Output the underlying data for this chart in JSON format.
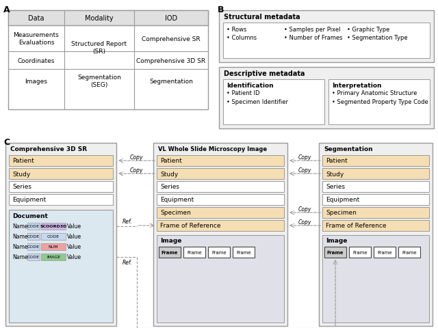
{
  "title_A": "A",
  "title_B": "B",
  "title_C": "C",
  "table_headers": [
    "Data",
    "Modality",
    "IOD"
  ],
  "struct_meta_title": "Structural metadata",
  "struct_meta_items_col1": [
    "Rows",
    "Columns"
  ],
  "struct_meta_items_col2": [
    "Samples per Pixel",
    "Number of Frames"
  ],
  "struct_meta_items_col3": [
    "Graphic Type",
    "Segmentation Type"
  ],
  "desc_meta_title": "Descriptive metadata",
  "ident_title": "Identification",
  "ident_items": [
    "Patient ID",
    "Specimen Identifier"
  ],
  "interp_title": "Interpretation",
  "interp_items": [
    "Primary Anatomic Structure",
    "Segmented Property Type Code"
  ],
  "box1_title": "Comprehensive 3D SR",
  "box2_title": "VL Whole Slide Microscopy Image",
  "box3_title": "Segmentation",
  "doc_title": "Document",
  "doc_rows": [
    {
      "left": "CODE",
      "right": "SCOORD3D",
      "left_color": "#c8d8f0",
      "right_color": "#d0b8e8"
    },
    {
      "left": "CODE",
      "right": "CODE",
      "left_color": "#c8d8f0",
      "right_color": "#c8d8f0"
    },
    {
      "left": "CODE",
      "right": "NUM",
      "left_color": "#c8d8f0",
      "right_color": "#f0a0a0"
    },
    {
      "left": "CODE",
      "right": "IMAGE",
      "left_color": "#c8d8f0",
      "right_color": "#90c890"
    }
  ],
  "image_label": "Image",
  "frame_label": "Frame",
  "patient_color": "#f5deb3",
  "study_color": "#f5deb3",
  "series_color": "#ffffff",
  "equipment_color": "#ffffff",
  "specimen_color": "#f5deb3",
  "fref_color": "#f5deb3",
  "image_bg": "#e0e0e8",
  "frame_color": "#ffffff",
  "first_frame_color": "#cccccc",
  "outer_bg": "#efefef",
  "doc_bg": "#dce8f0",
  "table_header_bg": "#e0e0e0",
  "table_body_bg": "#ffffff",
  "border_color": "#999999",
  "arrow_color": "#999999"
}
